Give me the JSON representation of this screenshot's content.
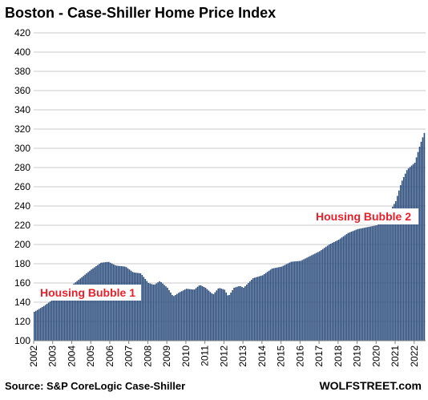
{
  "chart_data": {
    "type": "bar",
    "title": "Boston - Case-Shiller Home Price Index",
    "ylim": [
      100,
      420
    ],
    "yticks": [
      100,
      120,
      140,
      160,
      180,
      200,
      220,
      240,
      260,
      280,
      300,
      320,
      340,
      360,
      380,
      400,
      420
    ],
    "xlim_years": [
      2002,
      2022.6
    ],
    "xticks": [
      "2002",
      "2003",
      "2004",
      "2005",
      "2006",
      "2007",
      "2008",
      "2009",
      "2010",
      "2011",
      "2012",
      "2013",
      "2014",
      "2015",
      "2016",
      "2017",
      "2018",
      "2019",
      "2020",
      "2021",
      "2022"
    ],
    "grid": "horizontal",
    "bar_color": "#2e4f7e",
    "series": [
      {
        "frequency": "monthly",
        "start": "2002-01",
        "anchors": [
          [
            2002.0,
            130
          ],
          [
            2002.5,
            136
          ],
          [
            2003.0,
            143
          ],
          [
            2003.5,
            150
          ],
          [
            2004.0,
            158
          ],
          [
            2004.5,
            166
          ],
          [
            2005.0,
            174
          ],
          [
            2005.5,
            181
          ],
          [
            2005.9,
            182
          ],
          [
            2006.3,
            178
          ],
          [
            2006.8,
            177
          ],
          [
            2007.2,
            171
          ],
          [
            2007.6,
            170
          ],
          [
            2008.0,
            160
          ],
          [
            2008.3,
            158
          ],
          [
            2008.6,
            162
          ],
          [
            2009.0,
            155
          ],
          [
            2009.3,
            146
          ],
          [
            2009.6,
            150
          ],
          [
            2010.0,
            154
          ],
          [
            2010.4,
            153
          ],
          [
            2010.7,
            158
          ],
          [
            2011.0,
            155
          ],
          [
            2011.4,
            148
          ],
          [
            2011.7,
            155
          ],
          [
            2012.0,
            153
          ],
          [
            2012.2,
            146
          ],
          [
            2012.5,
            155
          ],
          [
            2012.8,
            157
          ],
          [
            2013.0,
            155
          ],
          [
            2013.5,
            165
          ],
          [
            2014.0,
            168
          ],
          [
            2014.5,
            175
          ],
          [
            2015.0,
            177
          ],
          [
            2015.5,
            182
          ],
          [
            2016.0,
            183
          ],
          [
            2016.5,
            188
          ],
          [
            2017.0,
            193
          ],
          [
            2017.5,
            200
          ],
          [
            2018.0,
            205
          ],
          [
            2018.5,
            212
          ],
          [
            2019.0,
            216
          ],
          [
            2019.5,
            218
          ],
          [
            2020.0,
            220
          ],
          [
            2020.5,
            228
          ],
          [
            2021.0,
            245
          ],
          [
            2021.3,
            265
          ],
          [
            2021.6,
            278
          ],
          [
            2022.0,
            285
          ],
          [
            2022.3,
            305
          ],
          [
            2022.5,
            316
          ]
        ]
      }
    ],
    "annotations": [
      "Housing Bubble 1",
      "Housing Bubble 2"
    ],
    "source": "Source: S&P CoreLogic Case-Shiller",
    "brand": "WOLFSTREET.com"
  }
}
